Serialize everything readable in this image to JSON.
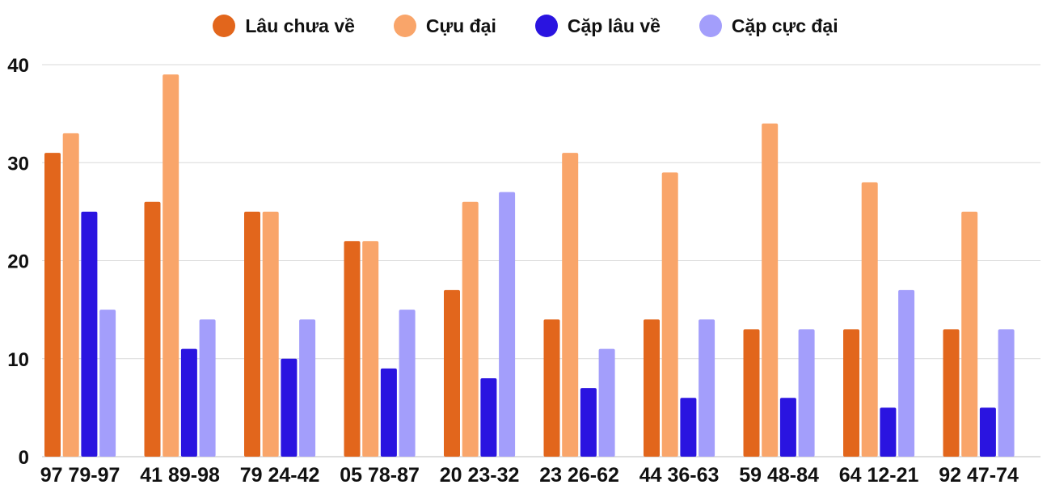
{
  "chart_data": {
    "type": "bar",
    "categories": [
      "97 79-97",
      "41 89-98",
      "79 24-42",
      "05 78-87",
      "20 23-32",
      "23 26-62",
      "44 36-63",
      "59 48-84",
      "64 12-21",
      "92 47-74"
    ],
    "series": [
      {
        "name": "Lâu chưa về",
        "color": "#e2661c",
        "values": [
          31,
          26,
          25,
          22,
          17,
          14,
          14,
          13,
          13,
          13
        ]
      },
      {
        "name": "Cựu đại",
        "color": "#f9a56a",
        "values": [
          33,
          39,
          25,
          22,
          26,
          31,
          29,
          34,
          28,
          25
        ]
      },
      {
        "name": "Cặp lâu về",
        "color": "#2a14e0",
        "values": [
          25,
          11,
          10,
          9,
          8,
          7,
          6,
          6,
          5,
          5
        ]
      },
      {
        "name": "Cặp cực đại",
        "color": "#a39efb",
        "values": [
          15,
          14,
          14,
          15,
          27,
          11,
          14,
          13,
          17,
          13
        ]
      }
    ],
    "ylim": [
      0,
      40
    ],
    "yticks": [
      0,
      10,
      20,
      30,
      40
    ],
    "grid": true,
    "legend": "top-center",
    "title": "",
    "xlabel": "",
    "ylabel": ""
  }
}
